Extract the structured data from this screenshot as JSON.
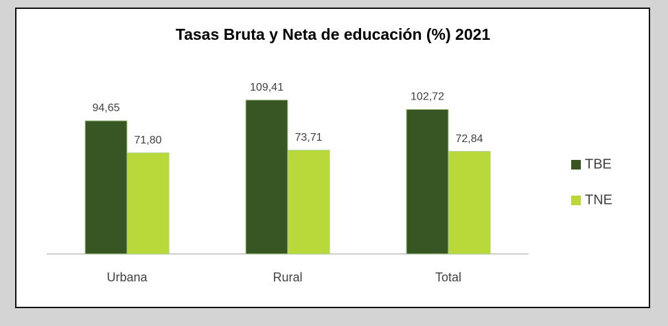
{
  "chart_data": {
    "type": "bar",
    "title": "Tasas Bruta y Neta de educación (%) 2021",
    "categories": [
      "Urbana",
      "Rural",
      "Total"
    ],
    "series": [
      {
        "name": "TBE",
        "color": "#375623",
        "values": [
          94.65,
          109.41,
          102.72
        ],
        "value_labels": [
          "94,65",
          "109,41",
          "102,72"
        ]
      },
      {
        "name": "TNE",
        "color": "#b9d93a",
        "values": [
          71.8,
          73.71,
          72.84
        ],
        "value_labels": [
          "71,80",
          "73,71",
          "72,84"
        ]
      }
    ],
    "ylim": [
      0,
      120
    ],
    "legend": "right"
  }
}
